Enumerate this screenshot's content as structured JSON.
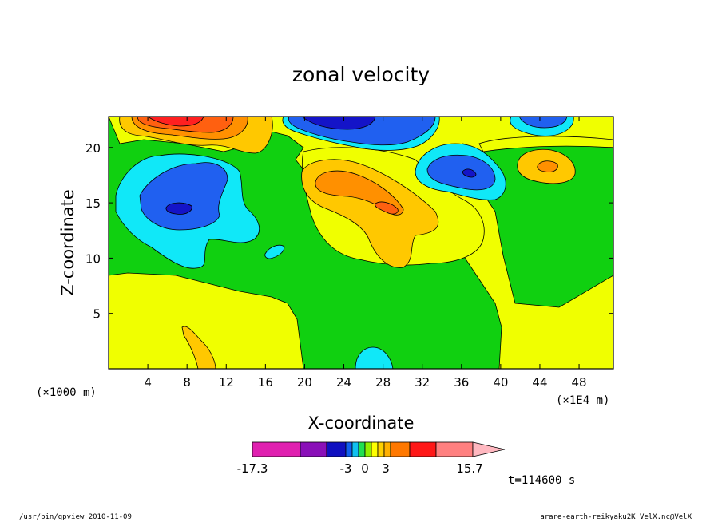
{
  "chart_data": {
    "type": "heatmap",
    "title": "zonal velocity",
    "xlabel": "X-coordinate",
    "ylabel": "Z-coordinate",
    "x_unit_left": "(×1000 m)",
    "x_unit_right": "(×1E4 m)",
    "x_ticks": [
      4,
      8,
      12,
      16,
      20,
      24,
      28,
      32,
      36,
      40,
      44,
      48
    ],
    "y_ticks": [
      5,
      10,
      15,
      20
    ],
    "xlim": [
      0,
      51.5
    ],
    "ylim": [
      0,
      22.8
    ],
    "color_levels": [
      -17.3,
      -3,
      0,
      3,
      15.7
    ],
    "colorbar_colors": [
      "#e020b0",
      "#8a10b8",
      "#1010c0",
      "#1060f0",
      "#10c0f0",
      "#20e050",
      "#90f000",
      "#ffff00",
      "#ffd000",
      "#ffb000",
      "#ff7800",
      "#ff1818",
      "#ff8080",
      "#ffb8c0"
    ],
    "field_colors": {
      "strong_negative": "#1414c8",
      "negative": "#2060f0",
      "weak_negative": "#10e8f8",
      "near_zero_neg": "#10d010",
      "near_zero_pos": "#f0ff00",
      "weak_positive": "#ffc800",
      "positive": "#ff9000",
      "strong_positive": "#ff6010",
      "max_positive": "#ff2020"
    },
    "regions": [
      {
        "level": "near_zero_pos",
        "kind": "background"
      },
      {
        "level": "near_zero_neg",
        "kind": "band",
        "note": "upper-left band"
      },
      {
        "level": "weak_negative",
        "center": [
          9,
          16.5
        ]
      },
      {
        "level": "negative",
        "center": [
          8.5,
          15.5
        ]
      },
      {
        "level": "strong_negative",
        "center": [
          7,
          14.8
        ]
      },
      {
        "level": "weak_negative",
        "center": [
          17,
          11
        ]
      },
      {
        "level": "near_zero_neg",
        "kind": "lower-right band"
      },
      {
        "level": "weak_negative",
        "center": [
          26.5,
          0.8
        ]
      },
      {
        "level": "weak_positive",
        "center": [
          9.5,
          1.5
        ]
      },
      {
        "level": "weak_positive",
        "center": [
          28,
          14
        ]
      },
      {
        "level": "positive",
        "center": [
          26,
          16.5
        ]
      },
      {
        "level": "strong_positive",
        "center": [
          28.5,
          15
        ]
      },
      {
        "level": "weak_negative",
        "center": [
          36,
          18
        ]
      },
      {
        "level": "negative",
        "center": [
          36,
          17.7
        ]
      },
      {
        "level": "strong_negative",
        "center": [
          36.2,
          17.6
        ]
      },
      {
        "level": "weak_positive",
        "center": [
          44,
          18.3
        ]
      },
      {
        "level": "positive",
        "center": [
          44.3,
          18.3
        ]
      },
      {
        "level": "weak_positive",
        "center": [
          8,
          22.5
        ]
      },
      {
        "level": "positive",
        "center": [
          8,
          22.3
        ]
      },
      {
        "level": "max_positive",
        "center": [
          8,
          22.6
        ]
      },
      {
        "level": "weak_negative",
        "center": [
          26,
          22
        ]
      },
      {
        "level": "negative",
        "center": [
          26,
          22.4
        ]
      },
      {
        "level": "strong_negative",
        "center": [
          25,
          22.6
        ]
      },
      {
        "level": "weak_negative",
        "center": [
          44,
          22.4
        ]
      },
      {
        "level": "negative",
        "center": [
          44.5,
          22.6
        ]
      }
    ]
  },
  "time_label": "t=114600 s",
  "footer_left": "/usr/bin/gpview   2010-11-09",
  "footer_right": "arare-earth-reikyaku2K_VelX.nc@VelX"
}
